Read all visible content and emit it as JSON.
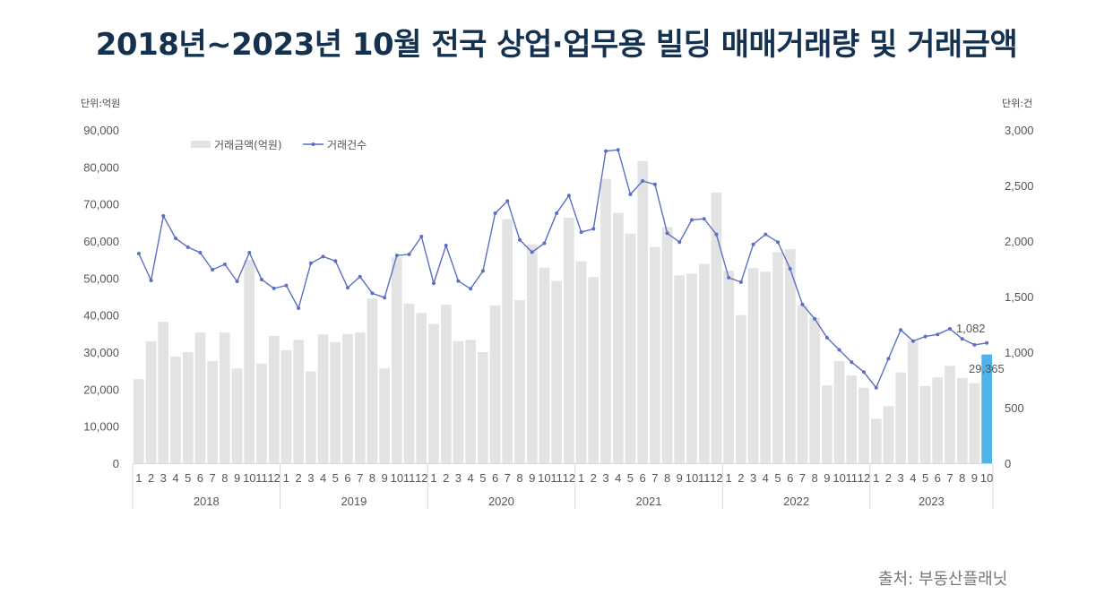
{
  "title": "2018년~2023년 10월 전국 상업·업무용 빌딩 매매거래량 및 거래금액",
  "units": {
    "left": "단위:억원",
    "right": "단위:건"
  },
  "source": "출처: 부동산플래닛",
  "legend": {
    "bar_label": "거래금액(억원)",
    "line_label": "거래건수"
  },
  "colors": {
    "bar": "#e3e3e3",
    "bar_highlight": "#4fb3ea",
    "line": "#5b6fc4",
    "title": "#14324f"
  },
  "annotations": {
    "last_bar_value": "29,365",
    "last_line_value": "1,082"
  },
  "chart_data": {
    "type": "bar+line",
    "title": "2018년~2023년 10월 전국 상업·업무용 빌딩 매매거래량 및 거래금액",
    "xlabel": "",
    "ylabel": "거래금액 (억원)",
    "y2label": "거래건수 (건)",
    "ylim": [
      0,
      90000
    ],
    "y2lim": [
      0,
      3000
    ],
    "yticks": [
      "0",
      "10,000",
      "20,000",
      "30,000",
      "40,000",
      "50,000",
      "60,000",
      "70,000",
      "80,000",
      "90,000"
    ],
    "y2ticks": [
      "0",
      "500",
      "1,000",
      "1,500",
      "2,000",
      "2,500",
      "3,000"
    ],
    "legend_position": "top-left",
    "grid": false,
    "years": [
      {
        "label": "2018",
        "months": 12
      },
      {
        "label": "2019",
        "months": 12
      },
      {
        "label": "2020",
        "months": 12
      },
      {
        "label": "2021",
        "months": 12
      },
      {
        "label": "2022",
        "months": 12
      },
      {
        "label": "2023",
        "months": 10
      }
    ],
    "categories": [
      "2018-1",
      "2018-2",
      "2018-3",
      "2018-4",
      "2018-5",
      "2018-6",
      "2018-7",
      "2018-8",
      "2018-9",
      "2018-10",
      "2018-11",
      "2018-12",
      "2019-1",
      "2019-2",
      "2019-3",
      "2019-4",
      "2019-5",
      "2019-6",
      "2019-7",
      "2019-8",
      "2019-9",
      "2019-10",
      "2019-11",
      "2019-12",
      "2020-1",
      "2020-2",
      "2020-3",
      "2020-4",
      "2020-5",
      "2020-6",
      "2020-7",
      "2020-8",
      "2020-9",
      "2020-10",
      "2020-11",
      "2020-12",
      "2021-1",
      "2021-2",
      "2021-3",
      "2021-4",
      "2021-5",
      "2021-6",
      "2021-7",
      "2021-8",
      "2021-9",
      "2021-10",
      "2021-11",
      "2021-12",
      "2022-1",
      "2022-2",
      "2022-3",
      "2022-4",
      "2022-5",
      "2022-6",
      "2022-7",
      "2022-8",
      "2022-9",
      "2022-10",
      "2022-11",
      "2022-12",
      "2023-1",
      "2023-2",
      "2023-3",
      "2023-4",
      "2023-5",
      "2023-6",
      "2023-7",
      "2023-8",
      "2023-9",
      "2023-10"
    ],
    "series": [
      {
        "name": "거래금액(억원)",
        "type": "bar",
        "axis": "left",
        "values": [
          22700,
          32900,
          38200,
          28800,
          30000,
          35300,
          27600,
          35300,
          25600,
          54900,
          26900,
          34400,
          30500,
          33300,
          24800,
          34800,
          32700,
          34900,
          35300,
          44500,
          25600,
          55600,
          43100,
          40600,
          37600,
          42800,
          33000,
          33300,
          30000,
          42600,
          65900,
          44000,
          59100,
          52800,
          49200,
          66300,
          54500,
          50300,
          76800,
          67600,
          62000,
          81600,
          58400,
          63800,
          50700,
          51200,
          53800,
          73100,
          52000,
          40000,
          52700,
          51700,
          57000,
          57800,
          42700,
          39300,
          21000,
          27600,
          23700,
          20400,
          12000,
          15400,
          24500,
          33000,
          20800,
          23200,
          26300,
          23000,
          21600,
          29365
        ]
      },
      {
        "name": "거래건수",
        "type": "line",
        "axis": "right",
        "values": [
          1887,
          1645,
          2226,
          2024,
          1944,
          1895,
          1742,
          1790,
          1637,
          1895,
          1653,
          1573,
          1600,
          1395,
          1800,
          1860,
          1820,
          1580,
          1680,
          1530,
          1490,
          1870,
          1880,
          2040,
          1620,
          1960,
          1640,
          1570,
          1730,
          2250,
          2360,
          2010,
          1900,
          1980,
          2250,
          2410,
          2080,
          2110,
          2810,
          2820,
          2420,
          2540,
          2510,
          2070,
          1990,
          2190,
          2200,
          2060,
          1670,
          1630,
          1970,
          2060,
          1990,
          1750,
          1430,
          1300,
          1130,
          1020,
          910,
          820,
          680,
          940,
          1200,
          1100,
          1140,
          1160,
          1210,
          1120,
          1065,
          1082
        ]
      }
    ]
  }
}
